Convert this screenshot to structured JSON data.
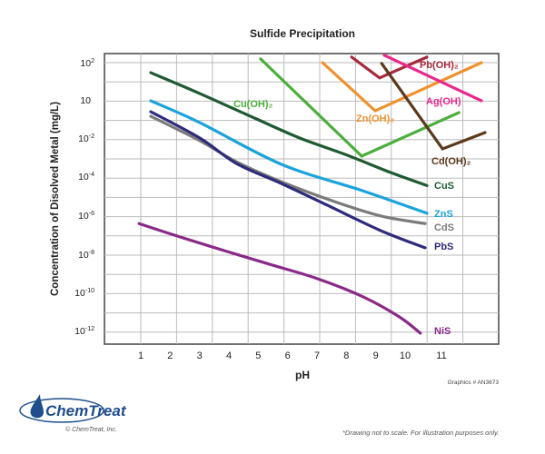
{
  "chart_data": {
    "type": "line",
    "title": "Sulfide Precipitation",
    "xlabel": "pH",
    "ylabel": "Concentration of Disolved Metal (mg/L)",
    "y_scale": "log10 (not to scale)",
    "x_ticks": [
      {
        "value": 1,
        "label": "1"
      },
      {
        "value": 2,
        "label": "2"
      },
      {
        "value": 3,
        "label": "3"
      },
      {
        "value": 4,
        "label": "4"
      },
      {
        "value": 5,
        "label": "5"
      },
      {
        "value": 6,
        "label": "6"
      },
      {
        "value": 7,
        "label": "7"
      },
      {
        "value": 8,
        "label": "8"
      },
      {
        "value": 9,
        "label": "9"
      },
      {
        "value": 10,
        "label": "10"
      },
      {
        "value": 11,
        "label": "11"
      }
    ],
    "y_ticks": [
      {
        "value": 2,
        "base": "10",
        "exp": "2"
      },
      {
        "value": 1,
        "base": "10",
        "exp": ""
      },
      {
        "value": -2,
        "base": "10",
        "exp": "-2"
      },
      {
        "value": -4,
        "base": "10",
        "exp": "-4"
      },
      {
        "value": -6,
        "base": "10",
        "exp": "-6"
      },
      {
        "value": -8,
        "base": "10",
        "exp": "-8"
      },
      {
        "value": -10,
        "base": "10",
        "exp": "-10"
      },
      {
        "value": -12,
        "base": "10",
        "exp": "-12"
      }
    ],
    "grid": true,
    "series": [
      {
        "name": "CuS",
        "color": "#1f5a32",
        "points": [
          [
            1.34,
            1.73
          ],
          [
            3.01,
            1.17
          ],
          [
            4.87,
            -0.43
          ],
          [
            6.41,
            -2
          ],
          [
            7.96,
            -2.86
          ],
          [
            9.51,
            -3.81
          ],
          [
            10.6,
            -4.48
          ]
        ]
      },
      {
        "name": "ZnS",
        "color": "#1ba3dc",
        "points": [
          [
            1.34,
            0.93
          ],
          [
            3.01,
            -0.79
          ],
          [
            5.79,
            -3.38
          ],
          [
            8.58,
            -4.76
          ],
          [
            10.6,
            -5.9
          ]
        ]
      },
      {
        "name": "CdS",
        "color": "#7b7b7b",
        "points": [
          [
            1.34,
            -0.29
          ],
          [
            3.01,
            -2.14
          ],
          [
            4.25,
            -3.24
          ],
          [
            5.79,
            -4.29
          ],
          [
            7.65,
            -5.33
          ],
          [
            9.2,
            -6.05
          ],
          [
            10.55,
            -6.43
          ]
        ]
      },
      {
        "name": "PbS",
        "color": "#2e2a7c",
        "points": [
          [
            1.34,
            0.07
          ],
          [
            3.01,
            -2
          ],
          [
            4.25,
            -3.33
          ],
          [
            5.79,
            -4.38
          ],
          [
            7.34,
            -5.48
          ],
          [
            9.2,
            -6.81
          ],
          [
            10.55,
            -7.67
          ]
        ]
      },
      {
        "name": "NiS",
        "color": "#8a2a88",
        "points": [
          [
            0.94,
            -6.43
          ],
          [
            2.39,
            -7.14
          ],
          [
            3.94,
            -7.86
          ],
          [
            5.48,
            -8.57
          ],
          [
            7.03,
            -9.29
          ],
          [
            8.58,
            -10.24
          ],
          [
            9.81,
            -11.29
          ],
          [
            10.42,
            -12.14
          ]
        ]
      },
      {
        "name": "Cu(OH)₂",
        "color": "#4cae3c",
        "points": [
          [
            5.08,
            2.1
          ],
          [
            8.52,
            -2.95
          ],
          [
            11.48,
            0
          ]
        ]
      },
      {
        "name": "Zn(OH)₂",
        "color": "#f0912c",
        "points": [
          [
            7.19,
            2
          ],
          [
            8.98,
            0.14
          ],
          [
            12.1,
            2
          ]
        ]
      },
      {
        "name": "Pb(OH)₂",
        "color": "#a52a3c",
        "points": [
          [
            8.18,
            2.15
          ],
          [
            9.13,
            1.59
          ],
          [
            10.6,
            2.15
          ]
        ]
      },
      {
        "name": "Ag(OH)",
        "color": "#e8288c",
        "points": [
          [
            9.29,
            2.2
          ],
          [
            12.1,
            0.93
          ]
        ]
      },
      {
        "name": "Cd(OH)₂",
        "color": "#5b3a1e",
        "points": [
          [
            9.2,
            1.98
          ],
          [
            11.03,
            -2.57
          ],
          [
            12.2,
            -1.57
          ]
        ]
      }
    ],
    "annotations": [
      "Graphics # AN3673"
    ]
  },
  "footer": {
    "logo_text": "ChemTreat",
    "copyright": "© ChemTreat, Inc.",
    "note": "*Drawing not to scale. For illustration purposes only."
  }
}
